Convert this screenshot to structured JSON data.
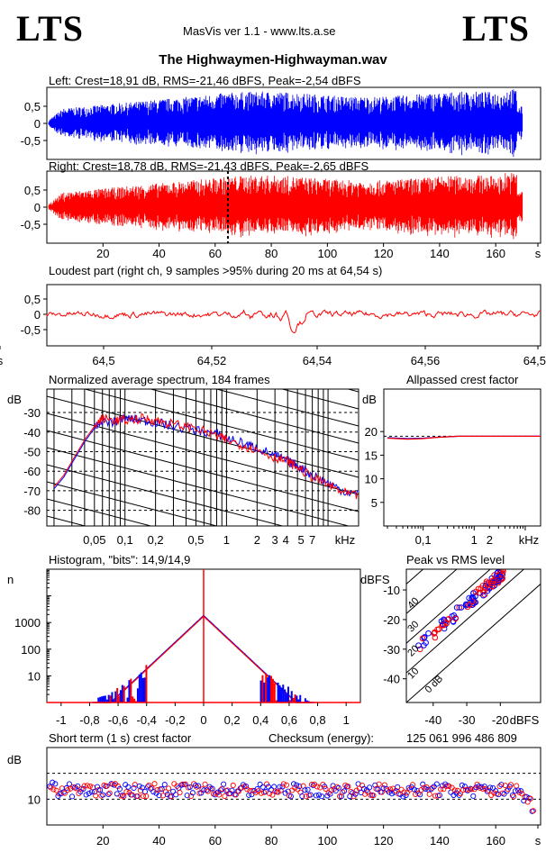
{
  "header": {
    "logo_left": "LTS",
    "logo_right": "LTS",
    "app": "MasVis ver 1.1 - www.lts.a.se",
    "file": "The Highwaymen-Highwayman.wav"
  },
  "colors": {
    "left": "#0000ff",
    "right": "#ff0000",
    "grid": "#000000"
  },
  "chart_data": [
    {
      "type": "area",
      "title": "Left: Crest=18,91 dB, RMS=-21,46 dBFS, Peak=-2,54 dBFS",
      "channel": "left",
      "yticks": [
        "0,5",
        "0",
        "-0,5"
      ],
      "ylim": [
        -1,
        1
      ],
      "xlim": [
        0,
        174
      ],
      "envelope_note": "waveform amplitude envelope (approx.)"
    },
    {
      "type": "area",
      "title": "Right: Crest=18,78 dB, RMS=-21,43 dBFS, Peak=-2,65 dBFS",
      "channel": "right",
      "yticks": [
        "0,5",
        "0",
        "-0,5"
      ],
      "ylim": [
        -1,
        1
      ],
      "xlim": [
        0,
        174
      ],
      "xticks": [
        "20",
        "40",
        "60",
        "80",
        "100",
        "120",
        "140",
        "160",
        "s"
      ],
      "marker_x": 64.54
    },
    {
      "type": "line",
      "title": "Loudest part (right ch, 9 samples >95% during 20 ms at 64,54 s)",
      "yticks": [
        "0,5",
        "0",
        "-0,5"
      ],
      "xticks": [
        "64,5",
        "64,52",
        "64,54",
        "64,56",
        "64,58",
        "s"
      ],
      "xlim": [
        64.484,
        64.596
      ]
    },
    {
      "type": "line",
      "title": "Normalized average spectrum, 184 frames",
      "ylabel": "dB",
      "xlabel": "kHz",
      "yticks": [
        "-30",
        "-40",
        "-50",
        "-60",
        "-70",
        "-80"
      ],
      "xticks": [
        "0,05",
        "0,1",
        "0,2",
        "0,5",
        "1",
        "2",
        "3",
        "4",
        "5",
        "7",
        "kHz"
      ],
      "ylim": [
        -88,
        -18
      ],
      "series": [
        {
          "x": [
            0.02,
            0.025,
            0.03,
            0.04,
            0.05,
            0.06,
            0.08,
            0.1,
            0.15,
            0.2,
            0.3,
            0.5,
            0.8,
            1,
            1.5,
            2,
            3,
            4,
            5,
            7,
            10,
            14,
            20
          ],
          "values": [
            -69,
            -63,
            -56,
            -45,
            -38,
            -34,
            -35,
            -33,
            -34,
            -35,
            -37,
            -39,
            -41,
            -43,
            -46,
            -48,
            -52,
            -55,
            -57,
            -62,
            -66,
            -70,
            -72
          ]
        },
        {
          "x": [
            0.02,
            0.025,
            0.03,
            0.04,
            0.05,
            0.06,
            0.08,
            0.1,
            0.15,
            0.2,
            0.3,
            0.5,
            0.8,
            1,
            1.5,
            2,
            3,
            4,
            5,
            7,
            10,
            14,
            20
          ],
          "values": [
            -68,
            -62,
            -55,
            -44,
            -37,
            -33,
            -34,
            -34,
            -33,
            -34,
            -36,
            -38,
            -42,
            -44,
            -47,
            -49,
            -53,
            -55,
            -58,
            -63,
            -67,
            -71,
            -73
          ]
        }
      ]
    },
    {
      "type": "line",
      "title": "Allpassed crest factor",
      "ylabel": "dB",
      "xlabel": "kHz",
      "yticks": [
        "20",
        "15",
        "10",
        "5"
      ],
      "xticks": [
        "0,1",
        "1",
        "2",
        "kHz"
      ],
      "ylim": [
        0,
        29
      ],
      "reference": 19,
      "series": [
        {
          "x": [
            0.02,
            0.05,
            0.1,
            0.2,
            0.5,
            1,
            2,
            5,
            20
          ],
          "values": [
            18.7,
            18.5,
            18.6,
            18.8,
            19,
            19,
            19,
            19,
            19
          ]
        },
        {
          "x": [
            0.02,
            0.05,
            0.1,
            0.2,
            0.5,
            1,
            2,
            5,
            20
          ],
          "values": [
            18.6,
            18.4,
            18.5,
            18.8,
            19,
            19,
            19,
            19,
            19
          ]
        }
      ]
    },
    {
      "type": "bar",
      "title": "Histogram, \"bits\": 14,9/14,9",
      "ylabel": "n",
      "yticks": [
        "1000",
        "100",
        "10"
      ],
      "xticks": [
        "-1",
        "-0,8",
        "-0,6",
        "-0,4",
        "-0,2",
        "0",
        "0,2",
        "0,4",
        "0,6",
        "0,8",
        "1"
      ],
      "peak": 1800,
      "xlim": [
        -1.1,
        1.1
      ],
      "ylim": [
        1,
        100000
      ],
      "scale": "log"
    },
    {
      "type": "scatter",
      "title": "Peak vs RMS level",
      "ylabel": "dBFS",
      "xlabel": "dBFS",
      "xticks": [
        "-40",
        "-30",
        "-20",
        "dBFS"
      ],
      "yticks": [
        "-10",
        "-20",
        "-30",
        "-40"
      ],
      "diagonal_labels": [
        "40",
        "30",
        "20",
        "10",
        "0 dB"
      ],
      "xlim": [
        -48,
        -8
      ],
      "ylim": [
        -48,
        -3
      ]
    },
    {
      "type": "scatter",
      "title": "Short term (1 s) crest factor",
      "ylabel": "dB",
      "checksum_label": "Checksum (energy):",
      "checksum_value": "125 061 996 486 809",
      "yticks": [
        "10"
      ],
      "xticks": [
        "20",
        "40",
        "60",
        "80",
        "100",
        "120",
        "140",
        "160",
        "s"
      ],
      "ylim": [
        0,
        30
      ],
      "xlim": [
        0,
        174
      ],
      "ref_lines": [
        20,
        10
      ],
      "typical": 13.5
    }
  ]
}
